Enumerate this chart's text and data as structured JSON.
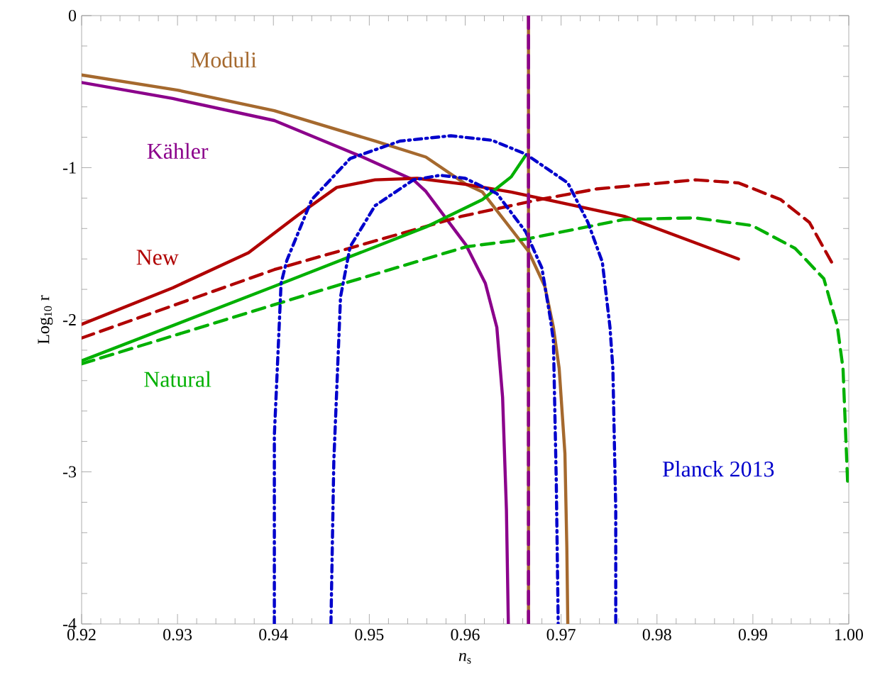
{
  "chart_data": {
    "type": "line",
    "xlabel": "*n*$_{s}$",
    "ylabel": "Log$_{10}$ r",
    "xlim": [
      0.92,
      1.0
    ],
    "ylim": [
      -4,
      0
    ],
    "xticks": [
      0.92,
      0.93,
      0.94,
      0.95,
      0.96,
      0.97,
      0.98,
      0.99,
      {
        "value": 1.0,
        "label": "1.00"
      }
    ],
    "yticks": [
      -4,
      -3,
      -2,
      -1,
      0
    ],
    "series": [
      {
        "name": "Moduli",
        "color": "#a5692e",
        "line_style": "solid",
        "x": [
          0.92,
          0.93,
          0.9401,
          0.9506,
          0.9559,
          0.9601,
          0.9618,
          0.9666,
          0.9683,
          0.9692,
          0.9698,
          0.9704,
          0.9706,
          0.9707
        ],
        "values": [
          -0.39,
          -0.49,
          -0.625,
          -0.825,
          -0.93,
          -1.11,
          -1.16,
          -1.55,
          -1.78,
          -2.05,
          -2.32,
          -2.88,
          -3.5,
          -4
        ]
      },
      {
        "name": "Kähler",
        "color": "#8b008b",
        "line_style": "solid",
        "x": [
          0.92,
          0.9295,
          0.9401,
          0.9493,
          0.9546,
          0.9559,
          0.9601,
          0.9621,
          0.9633,
          0.9639,
          0.9643,
          0.9645
        ],
        "values": [
          -0.44,
          -0.545,
          -0.69,
          -0.93,
          -1.08,
          -1.156,
          -1.51,
          -1.76,
          -2.05,
          -2.51,
          -3.25,
          -4
        ]
      },
      {
        "name": "New",
        "color": "#b00000",
        "line_style": "solid",
        "x": [
          0.92,
          0.9295,
          0.9374,
          0.9426,
          0.9466,
          0.9506,
          0.955,
          0.9601,
          0.9648,
          0.9766,
          0.9885
        ],
        "values": [
          -2.03,
          -1.79,
          -1.56,
          -1.31,
          -1.13,
          -1.08,
          -1.07,
          -1.11,
          -1.16,
          -1.32,
          -1.6
        ]
      },
      {
        "color": "#b00000",
        "line_style": "dashed",
        "x": [
          0.92,
          0.9401,
          0.9596,
          0.9677,
          0.9737,
          0.984,
          0.9885,
          0.9929,
          0.9959,
          0.9982
        ],
        "values": [
          -2.12,
          -1.67,
          -1.32,
          -1.21,
          -1.14,
          -1.08,
          -1.1,
          -1.21,
          -1.36,
          -1.62
        ]
      },
      {
        "name": "Natural",
        "color": "#00b000",
        "line_style": "solid",
        "x": [
          0.92,
          0.9401,
          0.9559,
          0.9618,
          0.9648,
          0.9663
        ],
        "values": [
          -2.27,
          -1.78,
          -1.39,
          -1.21,
          -1.06,
          -0.92
        ]
      },
      {
        "color": "#00b000",
        "line_style": "dashed",
        "x": [
          0.92,
          0.9453,
          0.9601,
          0.9663,
          0.9766,
          0.984,
          0.9899,
          0.9944,
          0.9974,
          0.9988,
          0.9994,
          0.9999
        ],
        "values": [
          -2.29,
          -1.8,
          -1.52,
          -1.47,
          -1.34,
          -1.33,
          -1.38,
          -1.53,
          -1.73,
          -2.04,
          -2.32,
          -3.1
        ]
      },
      {
        "name": "Planck 2013",
        "color": "#0000cc",
        "line_style": "dashdot",
        "x": [
          0.9401,
          0.9401,
          0.9408,
          0.9414,
          0.944,
          0.948,
          0.9532,
          0.9585,
          0.9628,
          0.9663,
          0.9707,
          0.9728,
          0.9743,
          0.9751,
          0.9754,
          0.9757,
          0.9757
        ],
        "values": [
          -4,
          -2.76,
          -1.76,
          -1.61,
          -1.21,
          -0.94,
          -0.825,
          -0.79,
          -0.82,
          -0.91,
          -1.1,
          -1.36,
          -1.62,
          -2.05,
          -2.32,
          -3.25,
          -4
        ]
      },
      {
        "color": "#0000cc",
        "line_style": "dashdot",
        "x": [
          0.946,
          0.9463,
          0.947,
          0.948,
          0.9506,
          0.9546,
          0.9574,
          0.96,
          0.9633,
          0.9663,
          0.968,
          0.9689,
          0.9692,
          0.9695,
          0.9697
        ],
        "values": [
          -4,
          -2.93,
          -1.85,
          -1.52,
          -1.25,
          -1.08,
          -1.05,
          -1.07,
          -1.17,
          -1.42,
          -1.66,
          -2.0,
          -2.14,
          -3.07,
          -4
        ]
      },
      {
        "color": "#a5692e",
        "line_style": "solid",
        "x": [
          0.9666,
          0.9666
        ],
        "values": [
          0,
          -4
        ]
      },
      {
        "color": "#8b008b",
        "line_style": "dashed",
        "x": [
          0.9666,
          0.9666
        ],
        "values": [
          0,
          -4
        ]
      }
    ]
  }
}
